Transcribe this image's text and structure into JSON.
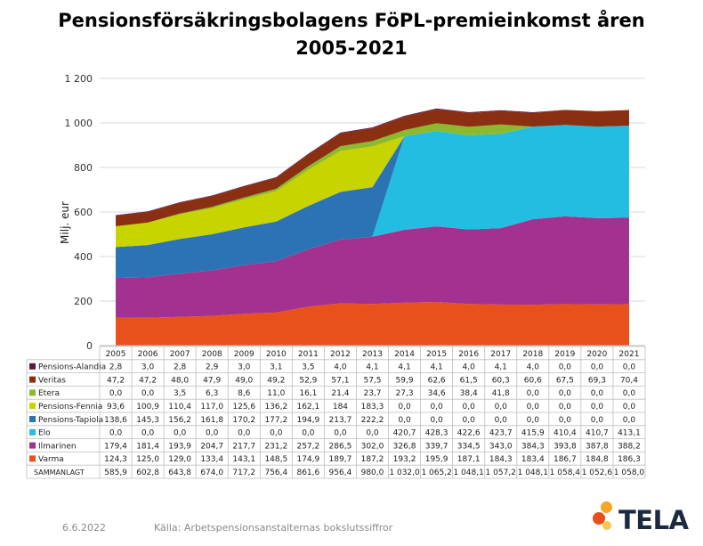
{
  "title_line1": "Pensionsförsäkringsbolagens FöPL-premieinkomst åren",
  "title_line2": "2005-2021",
  "footer": {
    "date": "6.6.2022",
    "source": "Källa: Arbetspensionsanstalternas bokslutssiffror"
  },
  "logo": {
    "text": "TELA",
    "colors": [
      "#f5a623",
      "#e94e1b",
      "#f7c74f"
    ]
  },
  "chart_data": {
    "type": "area",
    "stacked": true,
    "ylabel": "Milj. eur",
    "ylim": [
      0,
      1200
    ],
    "yticks": [
      0,
      200,
      400,
      600,
      800,
      1000,
      1200
    ],
    "ytick_labels": [
      "0",
      "200",
      "400",
      "600",
      "800",
      "1 000",
      "1 200"
    ],
    "categories": [
      "2005",
      "2006",
      "2007",
      "2008",
      "2009",
      "2010",
      "2011",
      "2012",
      "2013",
      "2014",
      "2015",
      "2016",
      "2017",
      "2018",
      "2019",
      "2020",
      "2021"
    ],
    "series": [
      {
        "name": "Varma",
        "color": "#e8501c",
        "values": [
          124.3,
          125.0,
          129.0,
          133.4,
          143.1,
          148.5,
          174.9,
          189.7,
          187.2,
          193.2,
          195.9,
          187.1,
          184.3,
          183.4,
          186.7,
          184.8,
          186.3
        ],
        "labels": [
          "124,3",
          "125,0",
          "129,0",
          "133,4",
          "143,1",
          "148,5",
          "174,9",
          "189,7",
          "187,2",
          "193,2",
          "195,9",
          "187,1",
          "184,3",
          "183,4",
          "186,7",
          "184,8",
          "186,3"
        ]
      },
      {
        "name": "Ilmarinen",
        "color": "#a2318f",
        "values": [
          179.4,
          181.4,
          193.9,
          204.7,
          217.7,
          231.2,
          257.2,
          286.5,
          302.0,
          326.8,
          339.7,
          334.5,
          343.0,
          384.3,
          393.8,
          387.8,
          388.2
        ],
        "labels": [
          "179,4",
          "181,4",
          "193,9",
          "204,7",
          "217,7",
          "231,2",
          "257,2",
          "286,5",
          "302,0",
          "326,8",
          "339,7",
          "334,5",
          "343,0",
          "384,3",
          "393,8",
          "387,8",
          "388,2"
        ]
      },
      {
        "name": "Elo",
        "color": "#24bde2",
        "values": [
          0,
          0,
          0,
          0,
          0,
          0,
          0,
          0,
          0,
          420.7,
          428.3,
          422.6,
          423.7,
          415.9,
          410.4,
          410.7,
          413.1
        ],
        "labels": [
          "0,0",
          "0,0",
          "0,0",
          "0,0",
          "0,0",
          "0,0",
          "0,0",
          "0,0",
          "0,0",
          "420,7",
          "428,3",
          "422,6",
          "423,7",
          "415,9",
          "410,4",
          "410,7",
          "413,1"
        ]
      },
      {
        "name": "Pensions-Tapiola",
        "color": "#2c73b6",
        "values": [
          138.6,
          145.3,
          156.2,
          161.8,
          170.2,
          177.2,
          194.9,
          213.7,
          222.2,
          0,
          0,
          0,
          0,
          0,
          0,
          0,
          0
        ],
        "labels": [
          "138,6",
          "145,3",
          "156,2",
          "161,8",
          "170,2",
          "177,2",
          "194,9",
          "213,7",
          "222,2",
          "0,0",
          "0,0",
          "0,0",
          "0,0",
          "0,0",
          "0,0",
          "0,0",
          "0,0"
        ]
      },
      {
        "name": "Pensions-Fennia",
        "color": "#c8d400",
        "values": [
          93.6,
          100.9,
          110.4,
          117.0,
          125.6,
          136.2,
          162.1,
          184,
          183.3,
          0,
          0,
          0,
          0,
          0,
          0,
          0,
          0
        ],
        "labels": [
          "93,6",
          "100,9",
          "110,4",
          "117,0",
          "125,6",
          "136,2",
          "162,1",
          "184",
          "183,3",
          "0,0",
          "0,0",
          "0,0",
          "0,0",
          "0,0",
          "0,0",
          "0,0",
          "0,0"
        ]
      },
      {
        "name": "Etera",
        "color": "#8cba2c",
        "values": [
          0,
          0,
          3.5,
          6.3,
          8.6,
          11.0,
          16.1,
          21.4,
          23.7,
          27.3,
          34.6,
          38.4,
          41.8,
          0,
          0,
          0,
          0
        ],
        "labels": [
          "0,0",
          "0,0",
          "3,5",
          "6,3",
          "8,6",
          "11,0",
          "16,1",
          "21,4",
          "23,7",
          "27,3",
          "34,6",
          "38,4",
          "41,8",
          "0,0",
          "0,0",
          "0,0",
          "0,0"
        ]
      },
      {
        "name": "Veritas",
        "color": "#8b2f12",
        "values": [
          47.2,
          47.2,
          48.0,
          47.9,
          49.0,
          49.2,
          52.9,
          57.1,
          57.5,
          59.9,
          62.6,
          61.5,
          60.3,
          60.6,
          67.5,
          69.3,
          70.4
        ],
        "labels": [
          "47,2",
          "47,2",
          "48,0",
          "47,9",
          "49,0",
          "49,2",
          "52,9",
          "57,1",
          "57,5",
          "59,9",
          "62,6",
          "61,5",
          "60,3",
          "60,6",
          "67,5",
          "69,3",
          "70,4"
        ]
      },
      {
        "name": "Pensions-Alandia",
        "color": "#5b1b3f",
        "values": [
          2.8,
          3.0,
          2.8,
          2.9,
          3.0,
          3.1,
          3.5,
          4.0,
          4.1,
          4.1,
          4.1,
          4.0,
          4.1,
          4.0,
          0,
          0,
          0
        ],
        "labels": [
          "2,8",
          "3,0",
          "2,8",
          "2,9",
          "3,0",
          "3,1",
          "3,5",
          "4,0",
          "4,1",
          "4,1",
          "4,1",
          "4,0",
          "4,1",
          "4,0",
          "0,0",
          "0,0",
          "0,0"
        ]
      }
    ],
    "table": {
      "row_order": [
        "Pensions-Alandia",
        "Veritas",
        "Etera",
        "Pensions-Fennia",
        "Pensions-Tapiola",
        "Elo",
        "Ilmarinen",
        "Varma"
      ],
      "total_label": "SAMMANLAGT",
      "totals": [
        "585,9",
        "602,8",
        "643,8",
        "674,0",
        "717,2",
        "756,4",
        "861,6",
        "956,4",
        "980,0",
        "1 032,0",
        "1 065,2",
        "1 048,1",
        "1 057,2",
        "1 048,1",
        "1 058,4",
        "1 052,6",
        "1 058,0"
      ]
    }
  }
}
